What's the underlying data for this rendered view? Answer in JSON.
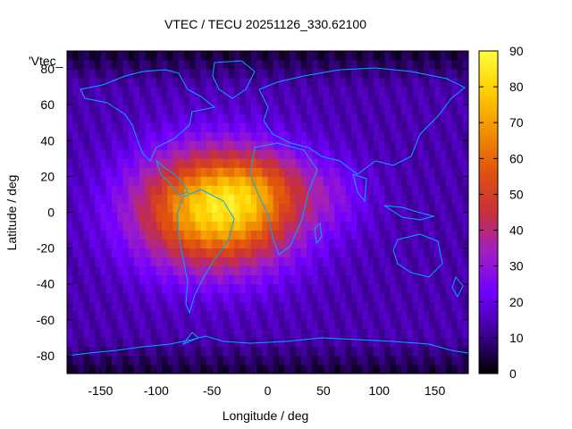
{
  "title": "VTEC / TECU 20251126_330.62100",
  "legend_key": "'Vtec_",
  "chart_data": {
    "type": "heatmap",
    "title": "VTEC / TECU 20251126_330.62100",
    "xlabel": "Longitude / deg",
    "ylabel": "Latitude / deg",
    "xlim": [
      -180,
      180
    ],
    "ylim": [
      -90,
      90
    ],
    "x_ticks": [
      -150,
      -100,
      -50,
      0,
      50,
      100,
      150
    ],
    "y_ticks": [
      -80,
      -60,
      -40,
      -20,
      0,
      20,
      40,
      60,
      80
    ],
    "x_tick_labels": [
      "-150",
      "-100",
      "-50",
      "0",
      "50",
      "100",
      "150"
    ],
    "y_tick_labels": [
      "-80",
      "-60",
      "-40",
      "-20",
      "0",
      "20",
      "40",
      "60",
      "80"
    ],
    "colorbar": {
      "range": [
        0,
        90
      ],
      "ticks": [
        0,
        10,
        20,
        30,
        40,
        50,
        60,
        70,
        80,
        90
      ],
      "tick_labels": [
        "0",
        "10",
        "20",
        "30",
        "40",
        "50",
        "60",
        "70",
        "80",
        "90"
      ],
      "palette": [
        "#000000",
        "#3b0090",
        "#7000ff",
        "#a020c0",
        "#c8303a",
        "#e05010",
        "#f09000",
        "#ffd000",
        "#ffff40"
      ]
    },
    "grid": false,
    "peak": {
      "lon": -45,
      "lat": 2,
      "value": 82
    },
    "coastline_color": "#00a8ff"
  }
}
